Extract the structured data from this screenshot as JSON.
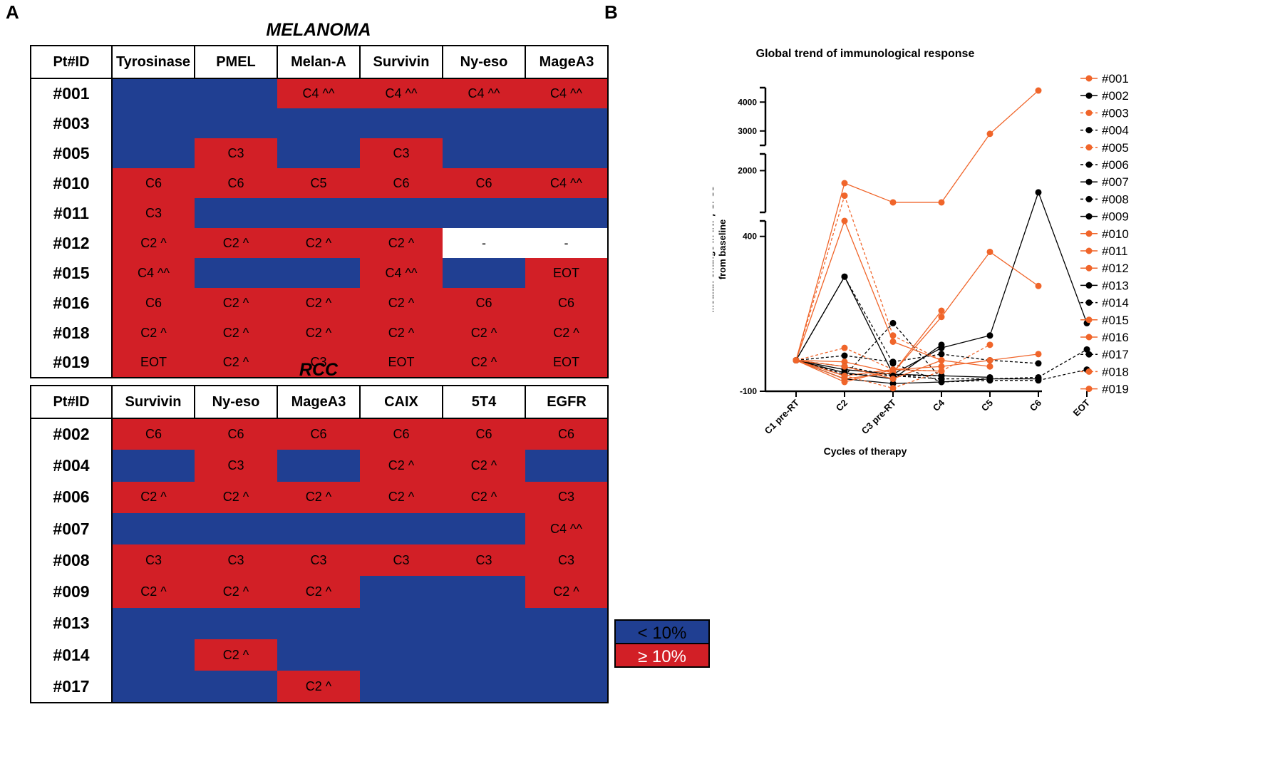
{
  "panels": {
    "a": "A",
    "b": "B"
  },
  "melanoma": {
    "title": "MELANOMA",
    "headers": [
      "Pt#ID",
      "Tyrosinase",
      "PMEL",
      "Melan-A",
      "Survivin",
      "Ny-eso",
      "MageA3"
    ],
    "rows": [
      {
        "id": "#001",
        "cells": [
          {
            "c": "b",
            "t": ""
          },
          {
            "c": "b",
            "t": ""
          },
          {
            "c": "r",
            "t": "C4 ^^"
          },
          {
            "c": "r",
            "t": "C4 ^^"
          },
          {
            "c": "r",
            "t": "C4 ^^"
          },
          {
            "c": "r",
            "t": "C4 ^^"
          }
        ]
      },
      {
        "id": "#003",
        "cells": [
          {
            "c": "b",
            "t": ""
          },
          {
            "c": "b",
            "t": ""
          },
          {
            "c": "b",
            "t": ""
          },
          {
            "c": "b",
            "t": ""
          },
          {
            "c": "b",
            "t": ""
          },
          {
            "c": "b",
            "t": ""
          }
        ]
      },
      {
        "id": "#005",
        "cells": [
          {
            "c": "b",
            "t": ""
          },
          {
            "c": "r",
            "t": "C3"
          },
          {
            "c": "b",
            "t": ""
          },
          {
            "c": "r",
            "t": "C3"
          },
          {
            "c": "b",
            "t": ""
          },
          {
            "c": "b",
            "t": ""
          }
        ]
      },
      {
        "id": "#010",
        "cells": [
          {
            "c": "r",
            "t": "C6"
          },
          {
            "c": "r",
            "t": "C6"
          },
          {
            "c": "r",
            "t": "C5"
          },
          {
            "c": "r",
            "t": "C6"
          },
          {
            "c": "r",
            "t": "C6"
          },
          {
            "c": "r",
            "t": "C4 ^^"
          }
        ]
      },
      {
        "id": "#011",
        "cells": [
          {
            "c": "r",
            "t": "C3"
          },
          {
            "c": "b",
            "t": ""
          },
          {
            "c": "b",
            "t": ""
          },
          {
            "c": "b",
            "t": ""
          },
          {
            "c": "b",
            "t": ""
          },
          {
            "c": "b",
            "t": ""
          }
        ]
      },
      {
        "id": "#012",
        "cells": [
          {
            "c": "r",
            "t": "C2 ^"
          },
          {
            "c": "r",
            "t": "C2 ^"
          },
          {
            "c": "r",
            "t": "C2 ^"
          },
          {
            "c": "r",
            "t": "C2 ^"
          },
          {
            "c": "w",
            "t": "-"
          },
          {
            "c": "w",
            "t": "-"
          }
        ]
      },
      {
        "id": "#015",
        "cells": [
          {
            "c": "r",
            "t": "C4 ^^"
          },
          {
            "c": "b",
            "t": ""
          },
          {
            "c": "b",
            "t": ""
          },
          {
            "c": "r",
            "t": "C4 ^^"
          },
          {
            "c": "b",
            "t": ""
          },
          {
            "c": "r",
            "t": "EOT"
          }
        ]
      },
      {
        "id": "#016",
        "cells": [
          {
            "c": "r",
            "t": "C6"
          },
          {
            "c": "r",
            "t": "C2 ^"
          },
          {
            "c": "r",
            "t": "C2 ^"
          },
          {
            "c": "r",
            "t": "C2 ^"
          },
          {
            "c": "r",
            "t": "C6"
          },
          {
            "c": "r",
            "t": "C6"
          }
        ]
      },
      {
        "id": "#018",
        "cells": [
          {
            "c": "r",
            "t": "C2 ^"
          },
          {
            "c": "r",
            "t": "C2 ^"
          },
          {
            "c": "r",
            "t": "C2 ^"
          },
          {
            "c": "r",
            "t": "C2 ^"
          },
          {
            "c": "r",
            "t": "C2 ^"
          },
          {
            "c": "r",
            "t": "C2 ^"
          }
        ]
      },
      {
        "id": "#019",
        "cells": [
          {
            "c": "r",
            "t": "EOT"
          },
          {
            "c": "r",
            "t": "C2 ^"
          },
          {
            "c": "r",
            "t": "C3"
          },
          {
            "c": "r",
            "t": "EOT"
          },
          {
            "c": "r",
            "t": "C2 ^"
          },
          {
            "c": "r",
            "t": "EOT"
          }
        ]
      }
    ]
  },
  "rcc": {
    "title": "RCC",
    "headers": [
      "Pt#ID",
      "Survivin",
      "Ny-eso",
      "MageA3",
      "CAIX",
      "5T4",
      "EGFR"
    ],
    "rows": [
      {
        "id": "#002",
        "cells": [
          {
            "c": "r",
            "t": "C6"
          },
          {
            "c": "r",
            "t": "C6"
          },
          {
            "c": "r",
            "t": "C6"
          },
          {
            "c": "r",
            "t": "C6"
          },
          {
            "c": "r",
            "t": "C6"
          },
          {
            "c": "r",
            "t": "C6"
          }
        ]
      },
      {
        "id": "#004",
        "cells": [
          {
            "c": "b",
            "t": ""
          },
          {
            "c": "r",
            "t": "C3"
          },
          {
            "c": "b",
            "t": ""
          },
          {
            "c": "r",
            "t": "C2 ^"
          },
          {
            "c": "r",
            "t": "C2 ^"
          },
          {
            "c": "b",
            "t": ""
          }
        ]
      },
      {
        "id": "#006",
        "cells": [
          {
            "c": "r",
            "t": "C2 ^"
          },
          {
            "c": "r",
            "t": "C2 ^"
          },
          {
            "c": "r",
            "t": "C2 ^"
          },
          {
            "c": "r",
            "t": "C2 ^"
          },
          {
            "c": "r",
            "t": "C2 ^"
          },
          {
            "c": "r",
            "t": "C3"
          }
        ]
      },
      {
        "id": "#007",
        "cells": [
          {
            "c": "b",
            "t": ""
          },
          {
            "c": "b",
            "t": ""
          },
          {
            "c": "b",
            "t": ""
          },
          {
            "c": "b",
            "t": ""
          },
          {
            "c": "b",
            "t": ""
          },
          {
            "c": "r",
            "t": "C4 ^^"
          }
        ]
      },
      {
        "id": "#008",
        "cells": [
          {
            "c": "r",
            "t": "C3"
          },
          {
            "c": "r",
            "t": "C3"
          },
          {
            "c": "r",
            "t": "C3"
          },
          {
            "c": "r",
            "t": "C3"
          },
          {
            "c": "r",
            "t": "C3"
          },
          {
            "c": "r",
            "t": "C3"
          }
        ]
      },
      {
        "id": "#009",
        "cells": [
          {
            "c": "r",
            "t": "C2 ^"
          },
          {
            "c": "r",
            "t": "C2 ^"
          },
          {
            "c": "r",
            "t": "C2 ^"
          },
          {
            "c": "b",
            "t": ""
          },
          {
            "c": "b",
            "t": ""
          },
          {
            "c": "r",
            "t": "C2 ^"
          }
        ]
      },
      {
        "id": "#013",
        "cells": [
          {
            "c": "b",
            "t": ""
          },
          {
            "c": "b",
            "t": ""
          },
          {
            "c": "b",
            "t": ""
          },
          {
            "c": "b",
            "t": ""
          },
          {
            "c": "b",
            "t": ""
          },
          {
            "c": "b",
            "t": ""
          }
        ]
      },
      {
        "id": "#014",
        "cells": [
          {
            "c": "b",
            "t": ""
          },
          {
            "c": "r",
            "t": "C2 ^"
          },
          {
            "c": "b",
            "t": ""
          },
          {
            "c": "b",
            "t": ""
          },
          {
            "c": "b",
            "t": ""
          },
          {
            "c": "b",
            "t": ""
          }
        ]
      },
      {
        "id": "#017",
        "cells": [
          {
            "c": "b",
            "t": ""
          },
          {
            "c": "b",
            "t": ""
          },
          {
            "c": "r",
            "t": "C2 ^"
          },
          {
            "c": "b",
            "t": ""
          },
          {
            "c": "b",
            "t": ""
          },
          {
            "c": "b",
            "t": ""
          }
        ]
      }
    ]
  },
  "legend": {
    "low": "< 10%",
    "high": "≥ 10%",
    "low_color": "#203f92",
    "high_color": "#d21f26"
  },
  "colors": {
    "orange": "#f0652a",
    "black": "#000000"
  },
  "chart_data": {
    "type": "line",
    "title": "Global trend of immunological response",
    "xlabel": "Cycles of therapy",
    "ylabel": "Median change in INFγ SFCs from baseline",
    "categories": [
      "C1 pre-RT",
      "C2",
      "C3 pre-RT",
      "C4",
      "C5",
      "C6",
      "EOT"
    ],
    "y_axis_segments": [
      {
        "range": [
          -100,
          450
        ],
        "ticks": [
          -100,
          400
        ]
      },
      {
        "range": [
          1500,
          2200
        ],
        "ticks": [
          2000
        ]
      },
      {
        "range": [
          2500,
          4500
        ],
        "ticks": [
          3000,
          4000
        ]
      }
    ],
    "series": [
      {
        "name": "#001",
        "color": "orange",
        "dashed": false,
        "values": [
          0,
          1850,
          1620,
          1620,
          2900,
          4400,
          null
        ]
      },
      {
        "name": "#002",
        "color": "black",
        "dashed": false,
        "values": [
          0,
          270,
          -45,
          40,
          80,
          1740,
          120
        ]
      },
      {
        "name": "#003",
        "color": "orange",
        "dashed": true,
        "values": [
          0,
          1700,
          80,
          0,
          null,
          null,
          null
        ]
      },
      {
        "name": "#004",
        "color": "black",
        "dashed": true,
        "values": [
          0,
          -50,
          120,
          -60,
          -60,
          -55,
          35
        ]
      },
      {
        "name": "#005",
        "color": "orange",
        "dashed": true,
        "values": [
          0,
          40,
          -30,
          -35,
          50,
          null,
          null
        ]
      },
      {
        "name": "#006",
        "color": "black",
        "dashed": true,
        "values": [
          0,
          15,
          -5,
          20,
          0,
          -10,
          null
        ]
      },
      {
        "name": "#007",
        "color": "black",
        "dashed": false,
        "values": [
          0,
          -40,
          -60,
          50,
          null,
          null,
          null
        ]
      },
      {
        "name": "#008",
        "color": "black",
        "dashed": true,
        "values": [
          0,
          270,
          -10,
          -70,
          -65,
          -65,
          -30
        ]
      },
      {
        "name": "#009",
        "color": "black",
        "dashed": false,
        "values": [
          0,
          -60,
          -75,
          -70,
          -60,
          -60,
          null
        ]
      },
      {
        "name": "#010",
        "color": "orange",
        "dashed": false,
        "values": [
          0,
          450,
          60,
          0,
          null,
          null,
          null
        ]
      },
      {
        "name": "#011",
        "color": "orange",
        "dashed": false,
        "values": [
          0,
          -50,
          -30,
          -35,
          null,
          null,
          null
        ]
      },
      {
        "name": "#012",
        "color": "orange",
        "dashed": false,
        "values": [
          0,
          -5,
          -40,
          140,
          350,
          240,
          null
        ]
      },
      {
        "name": "#013",
        "color": "black",
        "dashed": false,
        "values": [
          0,
          -30,
          -45,
          -50,
          -55,
          null,
          null
        ]
      },
      {
        "name": "#014",
        "color": "black",
        "dashed": true,
        "values": [
          0,
          -45,
          -50,
          -50,
          null,
          null,
          null
        ]
      },
      {
        "name": "#015",
        "color": "orange",
        "dashed": false,
        "values": [
          0,
          -60,
          -40,
          160,
          null,
          null,
          null
        ]
      },
      {
        "name": "#016",
        "color": "orange",
        "dashed": false,
        "values": [
          0,
          -70,
          -30,
          -20,
          0,
          20,
          null
        ]
      },
      {
        "name": "#017",
        "color": "black",
        "dashed": true,
        "values": [
          0,
          -20,
          -50,
          -60,
          null,
          null,
          null
        ]
      },
      {
        "name": "#018",
        "color": "orange",
        "dashed": true,
        "values": [
          0,
          -50,
          -90,
          -35,
          null,
          null,
          null
        ]
      },
      {
        "name": "#019",
        "color": "orange",
        "dashed": false,
        "values": [
          0,
          -20,
          -60,
          0,
          -20,
          null,
          null
        ]
      }
    ]
  }
}
